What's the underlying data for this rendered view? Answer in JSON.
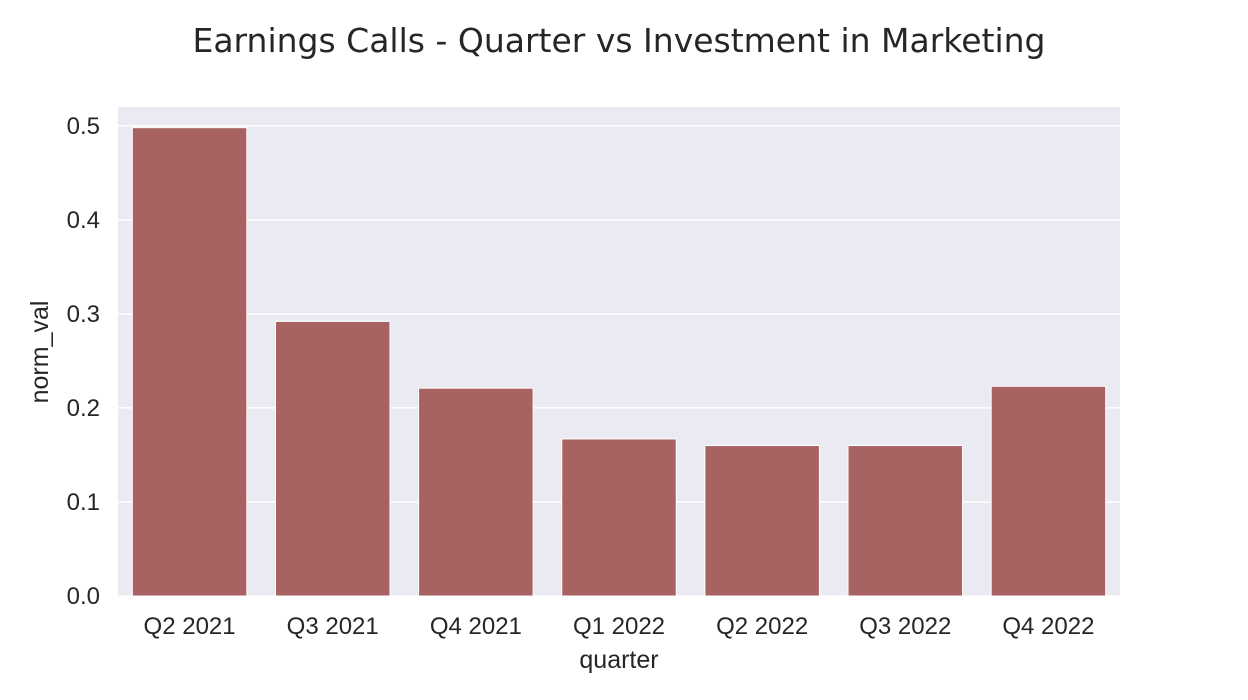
{
  "chart_data": {
    "type": "bar",
    "title": "Earnings Calls - Quarter vs Investment in Marketing",
    "xlabel": "quarter",
    "ylabel": "norm_val",
    "categories": [
      "Q2 2021",
      "Q3 2021",
      "Q4 2021",
      "Q1 2022",
      "Q2 2022",
      "Q3 2022",
      "Q4 2022"
    ],
    "values": [
      0.498,
      0.292,
      0.221,
      0.167,
      0.16,
      0.16,
      0.223
    ],
    "ylim": [
      0,
      0.52
    ],
    "yticks": [
      "0.0",
      "0.1",
      "0.2",
      "0.3",
      "0.4",
      "0.5"
    ],
    "grid": true,
    "colors": {
      "bar": "#a76261",
      "plot_bg": "#eaeaf2",
      "grid": "#ffffff"
    }
  }
}
